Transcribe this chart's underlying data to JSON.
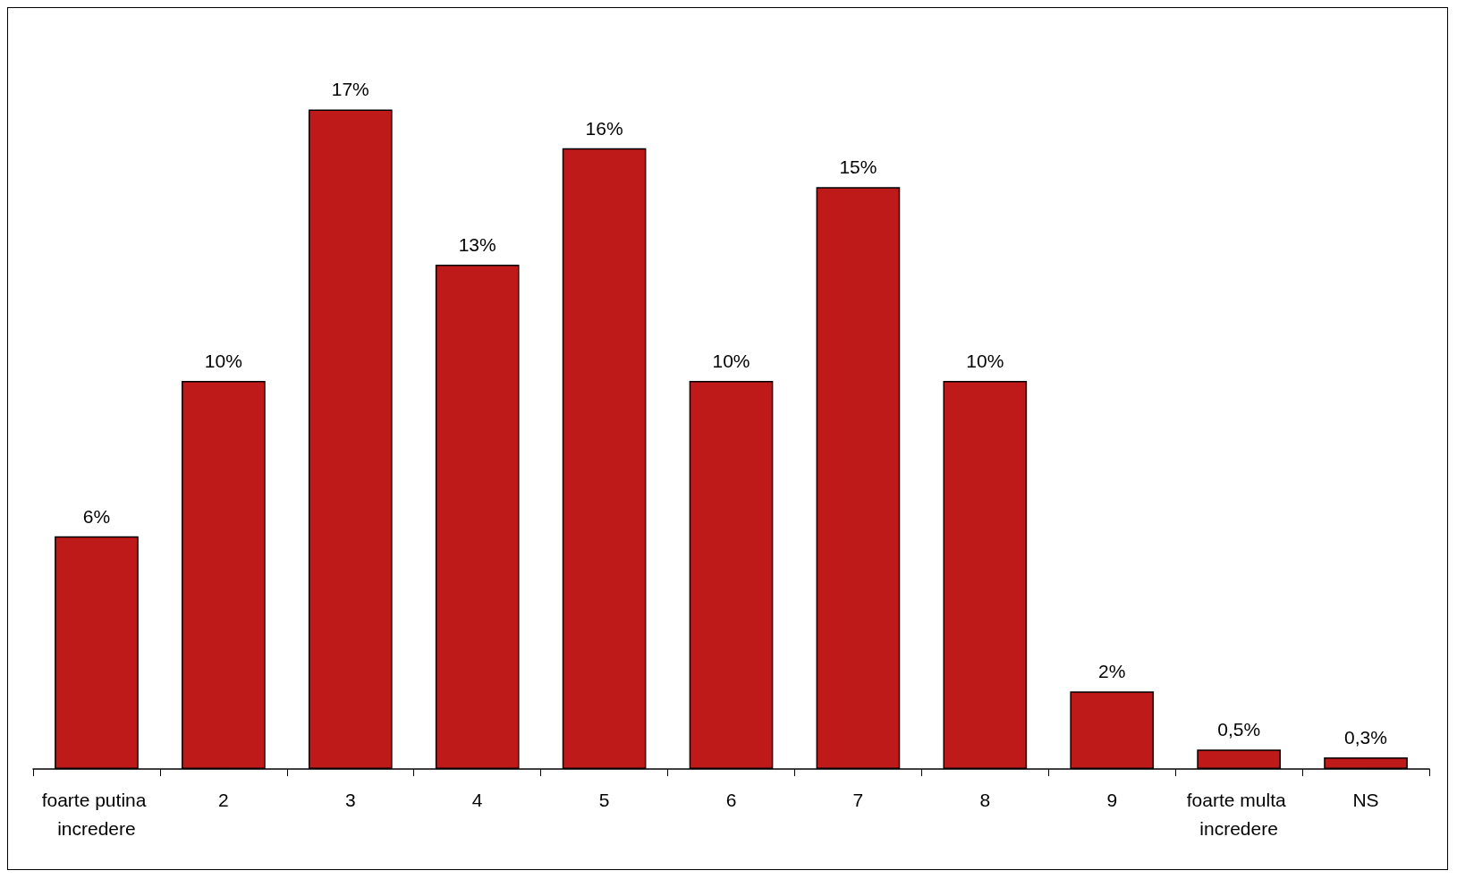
{
  "chart_data": {
    "type": "bar",
    "categories": [
      "foarte putina incredere",
      "2",
      "3",
      "4",
      "5",
      "6",
      "7",
      "8",
      "9",
      "foarte multa incredere",
      "NS"
    ],
    "values": [
      6,
      10,
      17,
      13,
      16,
      10,
      15,
      10,
      2,
      0.5,
      0.3
    ],
    "value_labels": [
      "6%",
      "10%",
      "17%",
      "13%",
      "16%",
      "10%",
      "15%",
      "10%",
      "2%",
      "0,5%",
      "0,3%"
    ],
    "color": "#be1a1a"
  }
}
